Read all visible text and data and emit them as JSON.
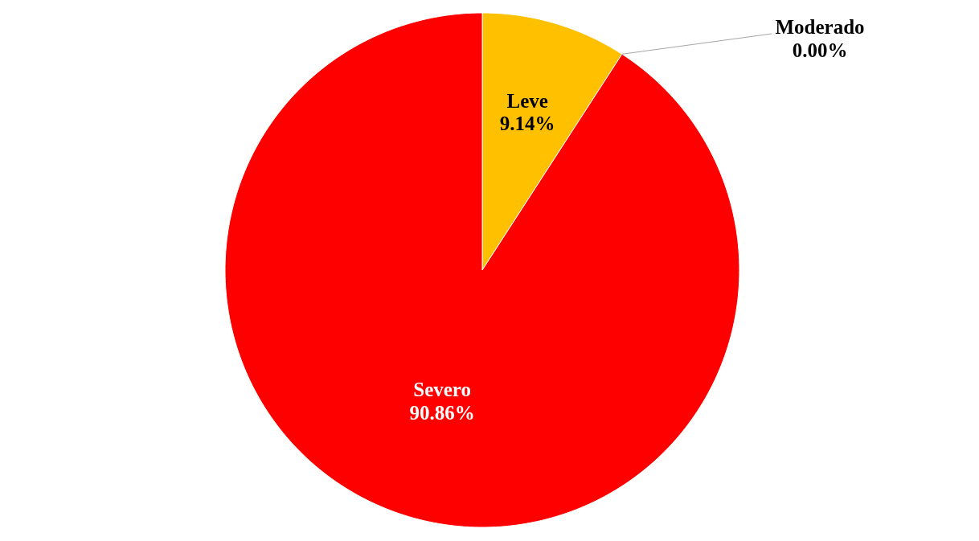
{
  "chart_data": {
    "type": "pie",
    "categories": [
      "Leve",
      "Moderado",
      "Severo"
    ],
    "values": [
      9.14,
      0,
      90.86
    ],
    "colors": [
      "#ffc000",
      null,
      "#ff0000"
    ],
    "value_labels": [
      "9.14%",
      "0.00%",
      "90.86%"
    ]
  }
}
